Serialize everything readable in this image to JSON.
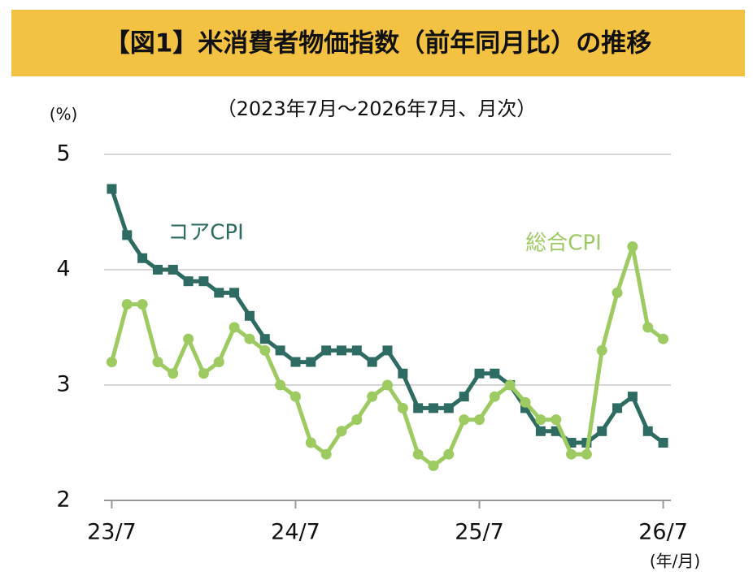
{
  "chart_data": {
    "type": "line",
    "title": "【図1】米消費者物価指数（前年同月比）の推移",
    "subtitle": "（2023年7月～2026年7月、月次）",
    "ylabel": "(%)",
    "xlabel": "(年/月)",
    "x": [
      0,
      1,
      2,
      3,
      4,
      5,
      6,
      7,
      8,
      9,
      10,
      11,
      12,
      13,
      14,
      15,
      16,
      17,
      18,
      19,
      20,
      21,
      22,
      23,
      24,
      25,
      26,
      27,
      28,
      29,
      30,
      31,
      32,
      33,
      34,
      35,
      36
    ],
    "xlim": [
      -0.5,
      36.5
    ],
    "xticks": [
      {
        "value": 0,
        "label": "23/7"
      },
      {
        "value": 12,
        "label": "24/7"
      },
      {
        "value": 24,
        "label": "25/7"
      },
      {
        "value": 36,
        "label": "26/7"
      }
    ],
    "ylim": [
      2,
      5
    ],
    "yticks": [
      2,
      3,
      4,
      5
    ],
    "grid": true,
    "series": [
      {
        "name": "コアCPI",
        "color": "#2e6b62",
        "marker": "square",
        "values": [
          4.7,
          4.3,
          4.1,
          4.0,
          4.0,
          3.9,
          3.9,
          3.8,
          3.8,
          3.6,
          3.4,
          3.3,
          3.2,
          3.2,
          3.3,
          3.3,
          3.3,
          3.2,
          3.3,
          3.1,
          2.8,
          2.8,
          2.8,
          2.9,
          3.1,
          3.1,
          3.0,
          2.8,
          2.6,
          2.6,
          2.5,
          2.5,
          2.6,
          2.8,
          2.9,
          2.6,
          2.5
        ]
      },
      {
        "name": "総合CPI",
        "color": "#9dcb62",
        "marker": "circle",
        "values": [
          3.2,
          3.7,
          3.7,
          3.2,
          3.1,
          3.4,
          3.1,
          3.2,
          3.5,
          3.4,
          3.3,
          3.0,
          2.9,
          2.5,
          2.4,
          2.6,
          2.7,
          2.9,
          3.0,
          2.8,
          2.4,
          2.3,
          2.4,
          2.7,
          2.7,
          2.9,
          3.0,
          2.85,
          2.7,
          2.7,
          2.4,
          2.4,
          3.3,
          3.8,
          4.2,
          3.5,
          3.4
        ]
      }
    ]
  }
}
